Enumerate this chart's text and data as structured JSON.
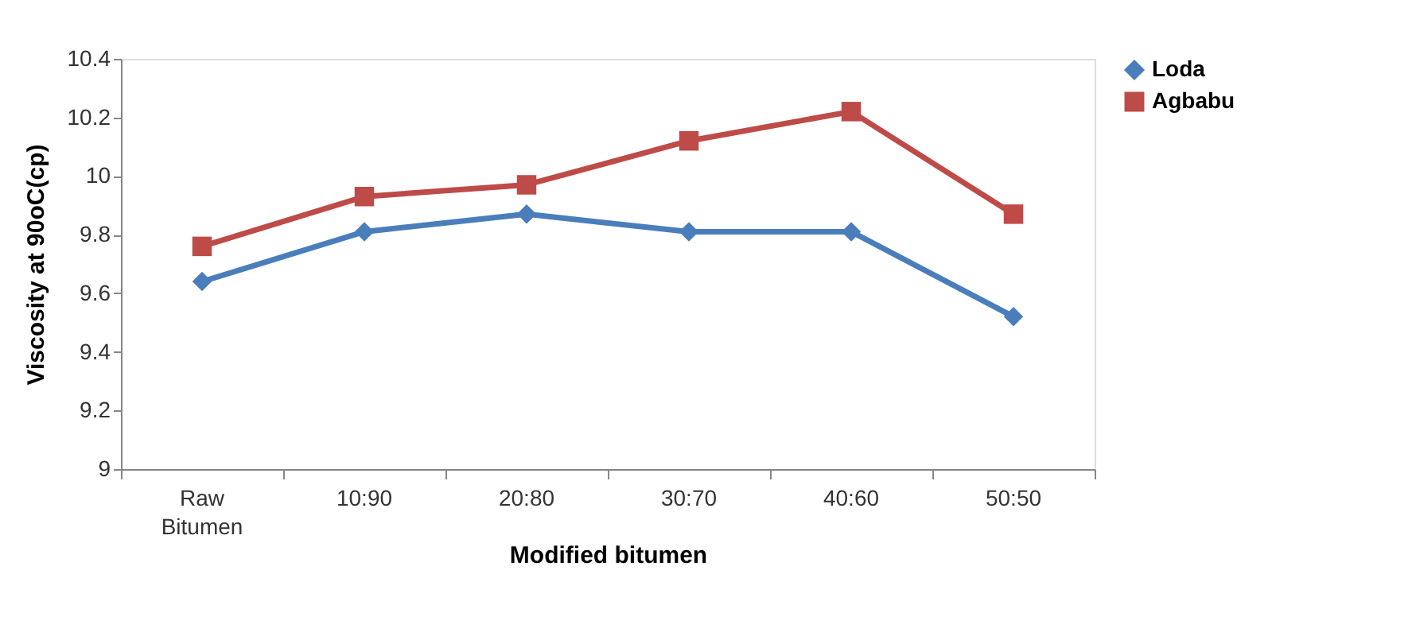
{
  "chart_data": {
    "type": "line",
    "xlabel": "Modified bitumen",
    "ylabel": "Viscosity at 90oC(cp)",
    "categories": [
      "Raw Bitumen",
      "10:90",
      "20:80",
      "30:70",
      "40:60",
      "50:50"
    ],
    "series": [
      {
        "name": "Loda",
        "color": "#4a7ebb",
        "marker": "diamond",
        "values": [
          9.64,
          9.81,
          9.87,
          9.81,
          9.81,
          9.52
        ]
      },
      {
        "name": "Agbabu",
        "color": "#be4b48",
        "marker": "square",
        "values": [
          9.76,
          9.93,
          9.97,
          10.12,
          10.22,
          9.87
        ]
      }
    ],
    "ylim": [
      9,
      10.4
    ],
    "yticks": [
      9,
      9.2,
      9.4,
      9.6,
      9.8,
      10,
      10.2,
      10.4
    ],
    "grid": false,
    "legend": "right"
  }
}
